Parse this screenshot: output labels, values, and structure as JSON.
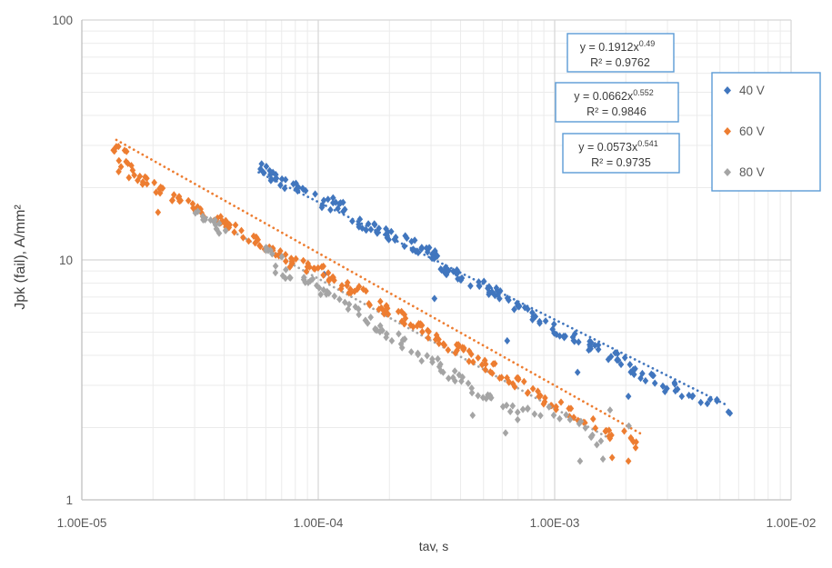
{
  "chart_data": {
    "type": "scatter",
    "title": "",
    "xlabel": "tav, s",
    "ylabel": "Jpk (fail),  A/mm²",
    "x_scale": "log",
    "y_scale": "log",
    "xlim": [
      1e-05,
      0.01
    ],
    "ylim": [
      1,
      100
    ],
    "x_tick_labels": [
      "1.00E-05",
      "1.00E-04",
      "1.00E-03",
      "1.00E-02"
    ],
    "y_tick_labels": [
      "1",
      "10",
      "100"
    ],
    "grid": "log major + minor gridlines, both axes",
    "legend_position": "inside upper-right, bordered box",
    "series": [
      {
        "name": "40 V",
        "color": "#4176BE",
        "marker": "diamond",
        "trendline": {
          "type": "power",
          "a": 0.1912,
          "b": -0.49,
          "equation_prefix": "y = 0.1912x",
          "equation_exponent": "0.49",
          "r_squared": "R² = 0.9762",
          "x_start": 5.6e-05,
          "x_end": 0.0053
        },
        "clusters": [
          [
            6.2e-05,
            23.0,
            10
          ],
          [
            6.9e-05,
            21.3,
            7
          ],
          [
            8.6e-05,
            19.5,
            9
          ],
          [
            0.000106,
            17.3,
            7
          ],
          [
            0.000125,
            16.6,
            8
          ],
          [
            0.000152,
            14.2,
            9
          ],
          [
            0.00018,
            13.5,
            7
          ],
          [
            0.000215,
            12.3,
            9
          ],
          [
            0.000255,
            11.5,
            10
          ],
          [
            0.000295,
            10.7,
            11
          ],
          [
            0.00034,
            9.2,
            8
          ],
          [
            0.0004,
            8.6,
            9
          ],
          [
            0.00048,
            7.9,
            8
          ],
          [
            0.00058,
            7.2,
            9
          ],
          [
            0.0007,
            6.3,
            8
          ],
          [
            0.00085,
            5.6,
            7
          ],
          [
            0.00105,
            5.0,
            8
          ],
          [
            0.0013,
            4.6,
            8
          ],
          [
            0.00155,
            4.2,
            7
          ],
          [
            0.0019,
            3.8,
            8
          ],
          [
            0.0023,
            3.4,
            7
          ],
          [
            0.0028,
            3.05,
            7
          ],
          [
            0.0034,
            2.85,
            6
          ],
          [
            0.0042,
            2.6,
            5
          ],
          [
            0.005,
            2.45,
            4
          ]
        ],
        "outliers": [
          [
            0.000106,
            8.7
          ],
          [
            0.00031,
            6.9
          ],
          [
            0.00063,
            4.6
          ],
          [
            0.00125,
            3.4
          ],
          [
            0.00205,
            2.7
          ]
        ]
      },
      {
        "name": "60 V",
        "color": "#ED7D31",
        "marker": "diamond",
        "trendline": {
          "type": "power",
          "a": 0.0662,
          "b": -0.552,
          "equation_prefix": "y = 0.0662x",
          "equation_exponent": "0.552",
          "r_squared": "R² = 0.9846",
          "x_start": 1.4e-05,
          "x_end": 0.0023
        },
        "clusters": [
          [
            1.48e-05,
            27.5,
            9
          ],
          [
            1.55e-05,
            23.5,
            6
          ],
          [
            1.85e-05,
            21.0,
            8
          ],
          [
            2.2e-05,
            19.0,
            8
          ],
          [
            2.6e-05,
            17.8,
            7
          ],
          [
            3.1e-05,
            16.2,
            8
          ],
          [
            3.7e-05,
            14.8,
            8
          ],
          [
            4.4e-05,
            13.4,
            8
          ],
          [
            5.2e-05,
            12.3,
            8
          ],
          [
            6.2e-05,
            10.8,
            9
          ],
          [
            7.4e-05,
            10.0,
            8
          ],
          [
            8.8e-05,
            9.3,
            8
          ],
          [
            0.000105,
            8.9,
            9
          ],
          [
            0.000125,
            7.9,
            8
          ],
          [
            0.00015,
            7.3,
            8
          ],
          [
            0.00018,
            6.4,
            9
          ],
          [
            0.000215,
            5.9,
            8
          ],
          [
            0.00026,
            5.3,
            8
          ],
          [
            0.00031,
            4.8,
            9
          ],
          [
            0.00037,
            4.35,
            8
          ],
          [
            0.00044,
            3.95,
            8
          ],
          [
            0.00053,
            3.6,
            8
          ],
          [
            0.00064,
            3.2,
            8
          ],
          [
            0.00077,
            2.9,
            7
          ],
          [
            0.00092,
            2.6,
            7
          ],
          [
            0.0011,
            2.4,
            7
          ],
          [
            0.00135,
            2.15,
            6
          ],
          [
            0.0016,
            1.95,
            6
          ],
          [
            0.00205,
            1.9,
            5
          ]
        ],
        "outliers": [
          [
            2.1e-05,
            15.8
          ],
          [
            0.00175,
            1.5
          ],
          [
            0.00205,
            1.45
          ],
          [
            0.0022,
            1.65
          ]
        ]
      },
      {
        "name": "80 V",
        "color": "#A5A5A5",
        "marker": "diamond",
        "trendline": {
          "type": "power",
          "a": 0.0573,
          "b": -0.541,
          "equation_prefix": "y = 0.0573x",
          "equation_exponent": "0.541",
          "r_squared": "R² = 0.9735",
          "x_start": 3.1e-05,
          "x_end": 0.00175
        },
        "clusters": [
          [
            3.3e-05,
            15.4,
            7
          ],
          [
            3.7e-05,
            13.8,
            7
          ],
          [
            6.5e-05,
            10.3,
            6
          ],
          [
            7.2e-05,
            8.7,
            7
          ],
          [
            9e-05,
            8.2,
            7
          ],
          [
            0.00011,
            7.1,
            7
          ],
          [
            0.000135,
            6.3,
            7
          ],
          [
            0.000165,
            5.5,
            7
          ],
          [
            0.0002,
            4.9,
            7
          ],
          [
            0.000245,
            4.3,
            7
          ],
          [
            0.0003,
            3.8,
            7
          ],
          [
            0.00036,
            3.35,
            7
          ],
          [
            0.00044,
            2.95,
            6
          ],
          [
            0.00054,
            2.6,
            6
          ],
          [
            0.00066,
            2.35,
            6
          ],
          [
            0.0008,
            2.25,
            5
          ],
          [
            0.00103,
            2.33,
            4
          ],
          [
            0.00125,
            2.05,
            4
          ],
          [
            0.00155,
            1.75,
            5
          ],
          [
            0.00187,
            2.2,
            2
          ]
        ],
        "outliers": [
          [
            0.00045,
            2.25
          ],
          [
            0.00062,
            1.9
          ],
          [
            0.00128,
            1.45
          ],
          [
            0.0016,
            1.48
          ]
        ]
      }
    ]
  },
  "colors": {
    "box_border": "#5B9BD5",
    "tick_label": "#595959",
    "axis_title": "#404040",
    "equation_text": "#3B3B3B",
    "legend_text": "#595959",
    "gridline_minor": "#EBEBEB",
    "gridline_major": "#D5D5D5",
    "axis_line": "#BFBFBF"
  }
}
